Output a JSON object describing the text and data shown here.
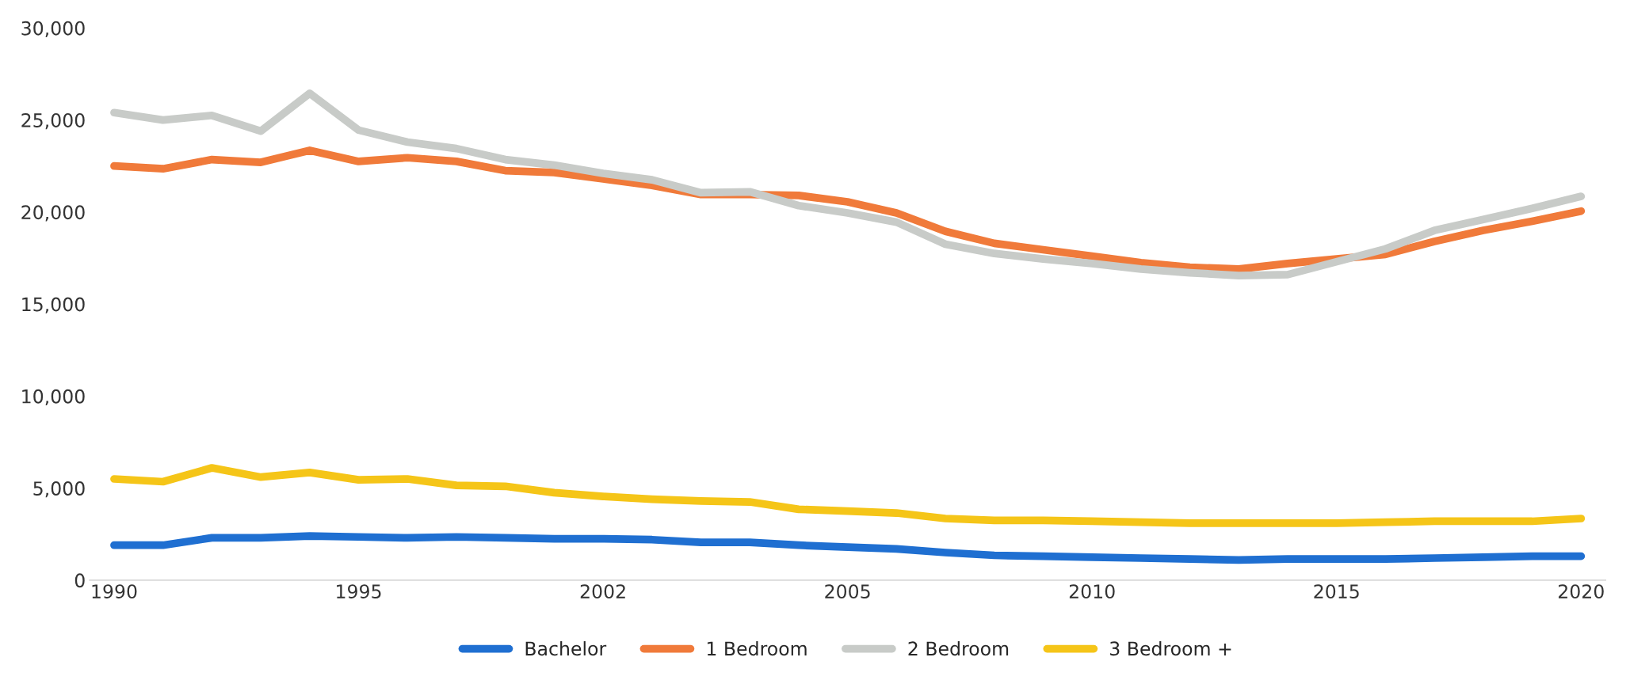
{
  "chart_data": {
    "type": "line",
    "categories": [
      "1990",
      null,
      null,
      null,
      null,
      "1995",
      null,
      null,
      null,
      null,
      "2002",
      null,
      null,
      null,
      null,
      "2005",
      null,
      null,
      null,
      null,
      "2010",
      null,
      null,
      null,
      null,
      "2015",
      null,
      null,
      null,
      null,
      "2020"
    ],
    "series": [
      {
        "name": "Bachelor",
        "color": "#1f6fd1",
        "values": [
          1900,
          1900,
          2300,
          2300,
          2400,
          2350,
          2300,
          2350,
          2300,
          2250,
          2250,
          2200,
          2050,
          2050,
          1900,
          1800,
          1700,
          1500,
          1350,
          1300,
          1250,
          1200,
          1150,
          1100,
          1150,
          1150,
          1150,
          1200,
          1250,
          1300,
          1300
        ]
      },
      {
        "name": "1 Bedroom",
        "color": "#f07a3a",
        "values": [
          22500,
          22350,
          22850,
          22700,
          23350,
          22750,
          22950,
          22750,
          22250,
          22150,
          21800,
          21450,
          20950,
          20950,
          20900,
          20550,
          19950,
          18950,
          18300,
          17950,
          17600,
          17250,
          17000,
          16900,
          17200,
          17450,
          17700,
          18400,
          19000,
          19500,
          20050
        ]
      },
      {
        "name": "2 Bedroom",
        "color": "#c8cbc8",
        "values": [
          25400,
          25000,
          25250,
          24400,
          26450,
          24450,
          23800,
          23450,
          22850,
          22550,
          22100,
          21750,
          21050,
          21100,
          20350,
          19950,
          19450,
          18250,
          17750,
          17450,
          17200,
          16900,
          16700,
          16550,
          16600,
          17300,
          18000,
          19000,
          19600,
          20200,
          20850
        ]
      },
      {
        "name": "3 Bedroom +",
        "color": "#f5c518",
        "values": [
          5500,
          5350,
          6100,
          5600,
          5850,
          5450,
          5500,
          5150,
          5100,
          4750,
          4550,
          4400,
          4300,
          4250,
          3850,
          3750,
          3650,
          3350,
          3250,
          3250,
          3200,
          3150,
          3100,
          3100,
          3100,
          3100,
          3150,
          3200,
          3200,
          3200,
          3350
        ]
      }
    ],
    "ylim": [
      0,
      30000
    ],
    "yticks": [
      {
        "value": 0,
        "label": "0"
      },
      {
        "value": 5000,
        "label": "5,000"
      },
      {
        "value": 10000,
        "label": "10,000"
      },
      {
        "value": 15000,
        "label": "15,000"
      },
      {
        "value": 20000,
        "label": "20,000"
      },
      {
        "value": 25000,
        "label": "25,000"
      },
      {
        "value": 30000,
        "label": "30,000"
      }
    ],
    "grid": false,
    "legend": "bottom",
    "marker": "none",
    "line_style": "solid"
  }
}
